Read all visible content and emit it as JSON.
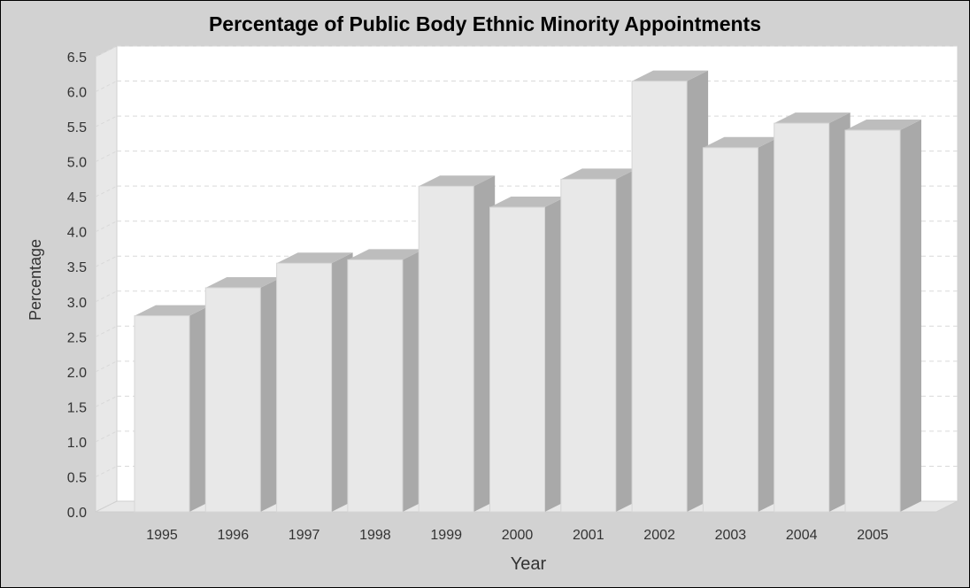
{
  "chart_data": {
    "type": "bar",
    "style": "3d",
    "title": "Percentage of Public Body Ethnic Minority Appointments",
    "xlabel": "Year",
    "ylabel": "Percentage",
    "categories": [
      "1995",
      "1996",
      "1997",
      "1998",
      "1999",
      "2000",
      "2001",
      "2002",
      "2003",
      "2004",
      "2005"
    ],
    "values": [
      2.8,
      3.2,
      3.55,
      3.6,
      4.65,
      4.35,
      4.75,
      6.15,
      5.2,
      5.55,
      5.45
    ],
    "ylim": [
      0,
      6.5
    ],
    "yticks": [
      "0.0",
      "0.5",
      "1.0",
      "1.5",
      "2.0",
      "2.5",
      "3.0",
      "3.5",
      "4.0",
      "4.5",
      "5.0",
      "5.5",
      "6.0",
      "6.5"
    ],
    "grid": true,
    "legend": "none",
    "colors": {
      "background": "#d2d2d2",
      "plot": "#ffffff",
      "wall": "#e8e8e8",
      "bar_front": "#e8e8e8",
      "bar_top": "#bdbdbd",
      "bar_side": "#a9a9a9",
      "grid": "#d9d9d9"
    }
  }
}
